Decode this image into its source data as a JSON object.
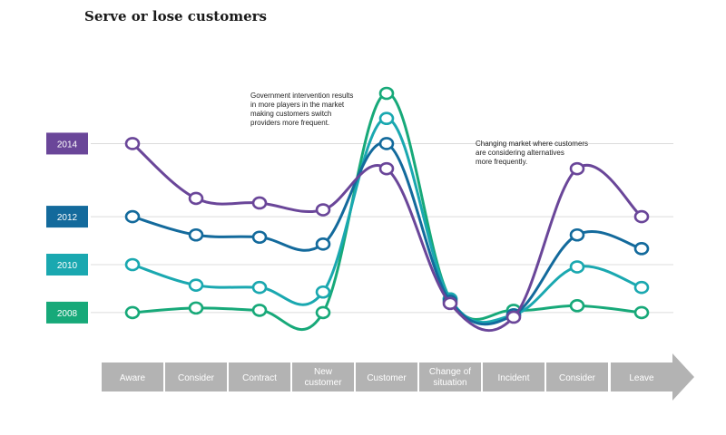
{
  "chart_data": {
    "type": "line",
    "title": "Serve or lose customers",
    "categories": [
      "Aware",
      "Consider",
      "Contract",
      "New customer",
      "Customer",
      "Change of situation",
      "Incident",
      "Consider",
      "Leave"
    ],
    "category_lines": [
      [
        "Aware"
      ],
      [
        "Consider"
      ],
      [
        "Contract"
      ],
      [
        "New",
        "customer"
      ],
      [
        "Customer"
      ],
      [
        "Change of",
        "situation"
      ],
      [
        "Incident"
      ],
      [
        "Consider"
      ],
      [
        "Leave"
      ]
    ],
    "yrange": [
      0,
      100
    ],
    "grid": true,
    "legend": "left",
    "series": [
      {
        "name": "2014",
        "color": "#6a4699",
        "values": [
          78,
          54,
          52,
          49,
          67,
          8,
          2,
          67,
          46
        ]
      },
      {
        "name": "2012",
        "color": "#136a9c",
        "values": [
          46,
          38,
          37,
          34,
          78,
          9,
          3,
          38,
          32
        ]
      },
      {
        "name": "2010",
        "color": "#1aa8b0",
        "values": [
          25,
          16,
          15,
          13,
          89,
          10,
          3,
          24,
          15
        ]
      },
      {
        "name": "2008",
        "color": "#17a979",
        "values": [
          4,
          6,
          5,
          4,
          100,
          10,
          5,
          7,
          4
        ]
      }
    ],
    "annotations": [
      {
        "text": [
          "Government intervention results",
          "in more players in the market",
          "making customers switch",
          "providers more frequent."
        ],
        "near": "Customer"
      },
      {
        "text": [
          "Changing market where customers",
          "are considering alternatives",
          "more frequently."
        ],
        "near": "Incident"
      }
    ]
  }
}
